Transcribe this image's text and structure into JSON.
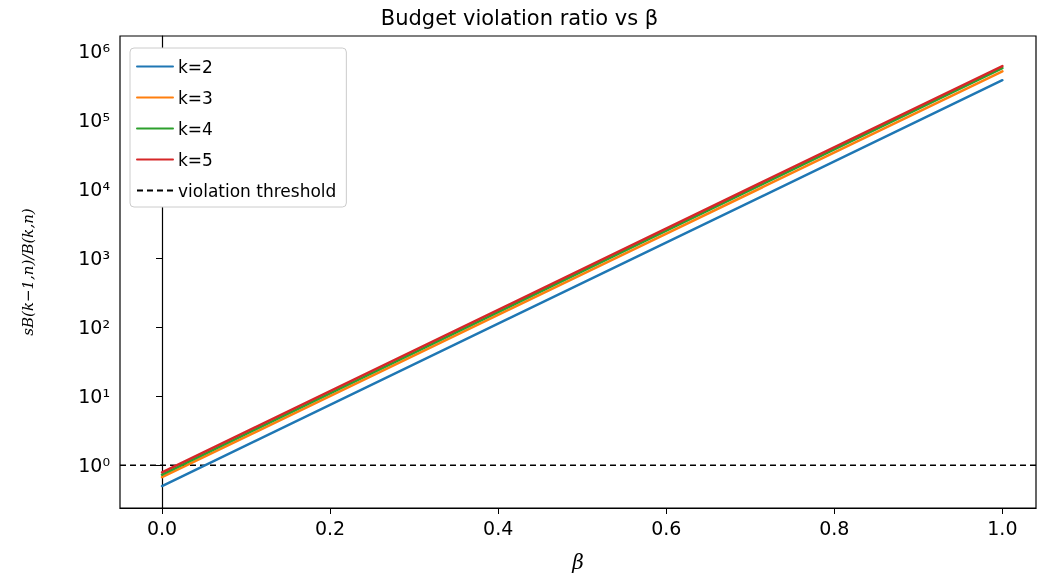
{
  "chart_data": {
    "type": "line",
    "title": "Budget violation ratio vs β",
    "xlabel": "β",
    "ylabel": "sB(k−1,n)/B(k,n)",
    "log": "y",
    "grid": false,
    "legend": "top left",
    "marker": "none",
    "line_style": "solid",
    "xlim": [
      -0.05,
      1.04
    ],
    "xticks": [
      {
        "value": 0,
        "label": "0.0"
      },
      {
        "value": 0.2,
        "label": "0.2"
      },
      {
        "value": 0.4,
        "label": "0.4"
      },
      {
        "value": 0.6,
        "label": "0.6"
      },
      {
        "value": 0.8,
        "label": "0.8"
      },
      {
        "value": 1,
        "label": "1.0"
      }
    ],
    "ylim": [
      0.24,
      1660000
    ],
    "yticks": [
      {
        "value": 1,
        "label": "10⁰"
      },
      {
        "value": 10,
        "label": "10¹"
      },
      {
        "value": 100,
        "label": "10²"
      },
      {
        "value": 1000,
        "label": "10³"
      },
      {
        "value": 10000,
        "label": "10⁴"
      },
      {
        "value": 100000,
        "label": "10⁵"
      },
      {
        "value": 1000000,
        "label": "10⁶"
      }
    ],
    "x": [
      0,
      1
    ],
    "series": [
      {
        "name": "k=2",
        "color": "#1f77b4",
        "values": [
          0.5,
          380000
        ]
      },
      {
        "name": "k=3",
        "color": "#ff7f0e",
        "values": [
          0.67,
          510000
        ]
      },
      {
        "name": "k=4",
        "color": "#2ca02c",
        "values": [
          0.73,
          570000
        ]
      },
      {
        "name": "k=5",
        "color": "#d62728",
        "values": [
          0.79,
          610000
        ]
      }
    ],
    "ref_lines": [
      {
        "axis": "y",
        "value": 1,
        "label": "violation threshold",
        "color": "#000000",
        "line_style": "dashed"
      }
    ]
  }
}
